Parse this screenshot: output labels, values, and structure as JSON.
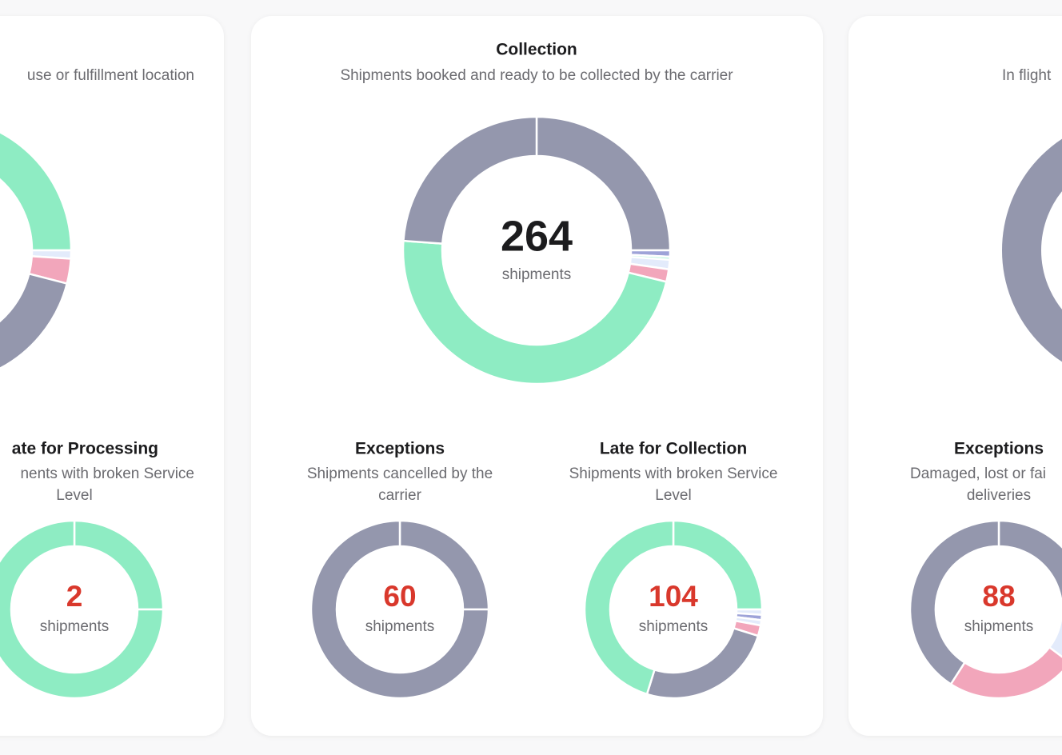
{
  "chart_data": [
    {
      "type": "donut",
      "subtitle": [
        "use or fulfillment location"
      ],
      "values": [
        25,
        1,
        3,
        30,
        41
      ],
      "colors": [
        "#8eecc3",
        "#e3ebfb",
        "#f2a6bb",
        "#9497ad",
        "#8eecc3"
      ]
    },
    {
      "type": "donut",
      "title": "Collection",
      "subtitle": [
        "Shipments booked and ready to be collected by the carrier"
      ],
      "total": 264,
      "total_label": "shipments",
      "total_color": "#1c1c1e",
      "values": [
        66,
        2,
        1,
        3,
        4,
        125,
        63
      ],
      "colors": [
        "#9497ad",
        "#9ea3d8",
        "#b9f5dd",
        "#e3ebfb",
        "#f2a6bb",
        "#8eecc3",
        "#9497ad"
      ]
    },
    {
      "type": "donut",
      "subtitle": [
        "In flight"
      ],
      "values": [
        100
      ],
      "colors": [
        "#9497ad"
      ]
    },
    {
      "type": "donut",
      "title": "ate for Processing",
      "subtitle": [
        "nents with broken Service",
        "Level"
      ],
      "total": 2,
      "total_label": "shipments",
      "total_color": "#d9382c",
      "values": [
        0.5,
        1.5
      ],
      "colors": [
        "#8eecc3",
        "#8eecc3"
      ]
    },
    {
      "type": "donut",
      "title": "Exceptions",
      "subtitle": [
        "Shipments cancelled by the",
        "carrier"
      ],
      "total": 60,
      "total_label": "shipments",
      "total_color": "#d9382c",
      "values": [
        15,
        45
      ],
      "colors": [
        "#9497ad",
        "#9497ad"
      ]
    },
    {
      "type": "donut",
      "title": "Late for Collection",
      "subtitle": [
        "Shipments with broken Service",
        "Level"
      ],
      "total": 104,
      "total_label": "shipments",
      "total_color": "#d9382c",
      "values": [
        26,
        1,
        1,
        1,
        2,
        26,
        47
      ],
      "colors": [
        "#8eecc3",
        "#e3ebfb",
        "#9ea3d8",
        "#e3ebfb",
        "#f2a6bb",
        "#9497ad",
        "#8eecc3"
      ]
    },
    {
      "type": "donut",
      "title": "Exceptions",
      "subtitle": [
        "Damaged, lost or fai",
        "deliveries"
      ],
      "total": 88,
      "total_label": "shipments",
      "total_color": "#d9382c",
      "values": [
        24,
        7,
        21,
        36
      ],
      "colors": [
        "#9497ad",
        "#e3ebfb",
        "#f2a6bb",
        "#9497ad"
      ]
    }
  ]
}
